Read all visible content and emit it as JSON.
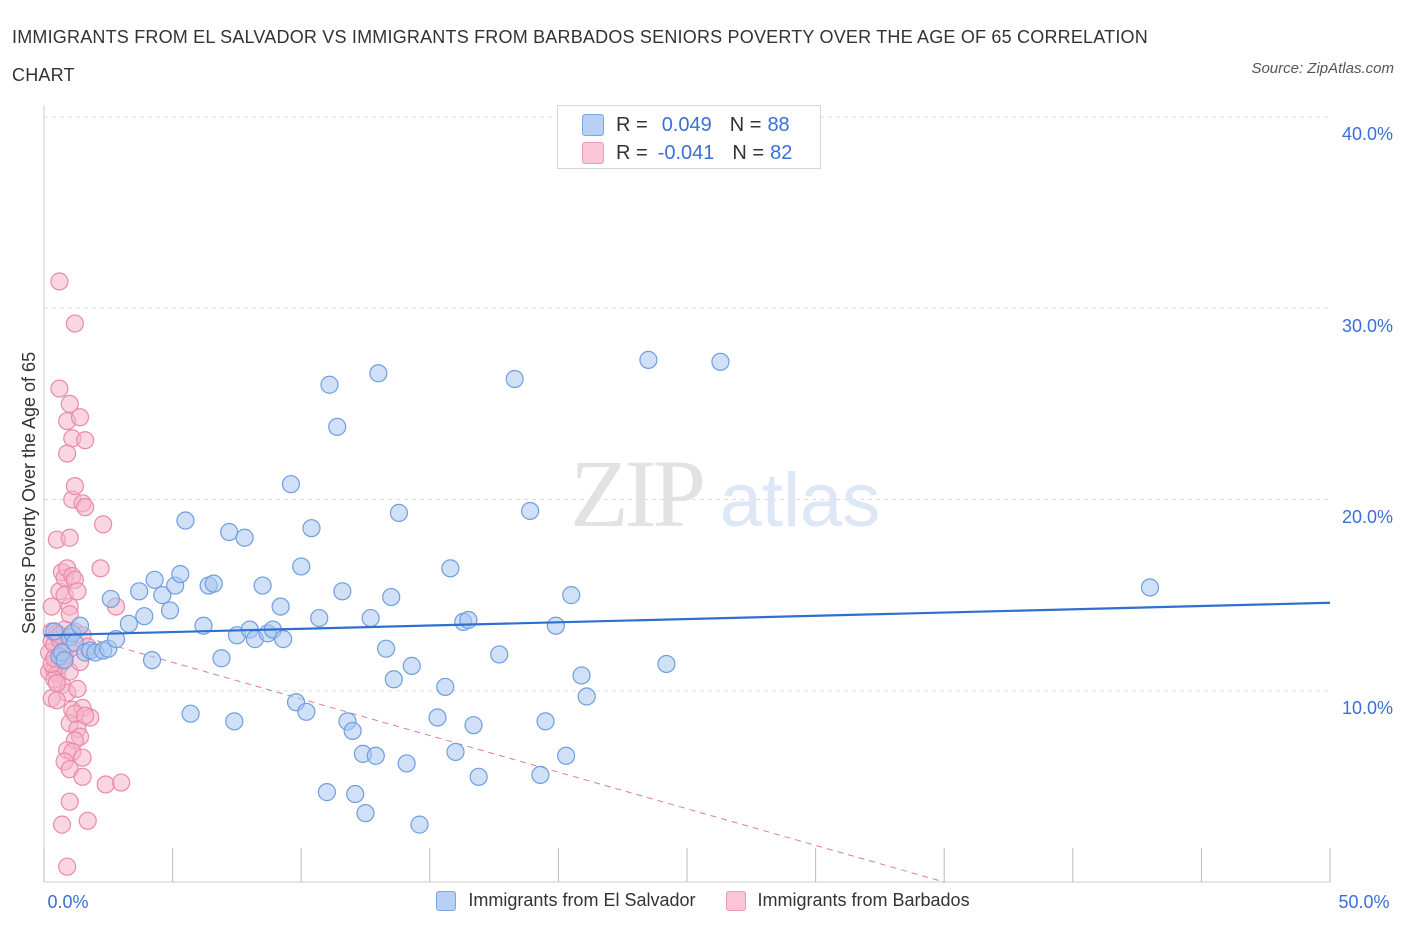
{
  "title": "IMMIGRANTS FROM EL SALVADOR VS IMMIGRANTS FROM BARBADOS SENIORS POVERTY OVER THE AGE OF 65 CORRELATION CHART",
  "source": "Source: ZipAtlas.com",
  "watermark": {
    "zip": "ZIP",
    "atlas": "atlas"
  },
  "legend": {
    "series1": {
      "r_label": "R =",
      "r_value": "0.049",
      "n_label": "N =",
      "n_value": "88"
    },
    "series2": {
      "r_label": "R =",
      "r_value": "-0.041",
      "n_label": "N =",
      "n_value": "82"
    }
  },
  "colors": {
    "blue_fill": "#a8c6f0",
    "blue_stroke": "#6f9ee0",
    "blue_line": "#2e6fd0",
    "pink_fill": "#f6b4c9",
    "pink_stroke": "#e88aab",
    "pink_line": "#e07a9c",
    "grid": "#dddddd",
    "tick_text": "#3a6fd8",
    "axis_text": "#333333"
  },
  "chart_data": {
    "type": "scatter",
    "title": "IMMIGRANTS FROM EL SALVADOR VS IMMIGRANTS FROM BARBADOS SENIORS POVERTY OVER THE AGE OF 65 CORRELATION CHART",
    "xlabel": "",
    "ylabel": "Seniors Poverty Over the Age of 65",
    "xlim": [
      0,
      50
    ],
    "ylim": [
      0,
      40
    ],
    "x_tick_labels": [
      "0.0%",
      "50.0%"
    ],
    "y_tick_labels": [
      "10.0%",
      "20.0%",
      "30.0%",
      "40.0%"
    ],
    "y_ticks": [
      10,
      20,
      30,
      40
    ],
    "series": [
      {
        "name": "Immigrants from El Salvador",
        "color": "blue",
        "r": 0.049,
        "n": 88,
        "trend": {
          "x": [
            0,
            50
          ],
          "y": [
            12.9,
            14.6
          ],
          "style": "solid"
        },
        "points": [
          [
            0.4,
            13.1
          ],
          [
            0.6,
            11.8
          ],
          [
            0.7,
            12.0
          ],
          [
            0.8,
            11.6
          ],
          [
            1.0,
            12.8
          ],
          [
            1.1,
            13.0
          ],
          [
            1.2,
            12.5
          ],
          [
            1.4,
            13.4
          ],
          [
            1.6,
            12.0
          ],
          [
            1.8,
            12.1
          ],
          [
            2.0,
            12.0
          ],
          [
            2.3,
            12.1
          ],
          [
            2.5,
            12.2
          ],
          [
            2.8,
            12.7
          ],
          [
            2.6,
            14.8
          ],
          [
            3.3,
            13.5
          ],
          [
            3.7,
            15.2
          ],
          [
            3.9,
            13.9
          ],
          [
            4.2,
            11.6
          ],
          [
            4.3,
            15.8
          ],
          [
            4.6,
            15.0
          ],
          [
            4.9,
            14.2
          ],
          [
            5.1,
            15.5
          ],
          [
            5.3,
            16.1
          ],
          [
            5.5,
            18.9
          ],
          [
            5.7,
            8.8
          ],
          [
            6.2,
            13.4
          ],
          [
            6.4,
            15.5
          ],
          [
            6.6,
            15.6
          ],
          [
            6.9,
            11.7
          ],
          [
            7.2,
            18.3
          ],
          [
            7.4,
            8.4
          ],
          [
            7.5,
            12.9
          ],
          [
            7.8,
            18.0
          ],
          [
            8.0,
            13.2
          ],
          [
            8.2,
            12.7
          ],
          [
            8.5,
            15.5
          ],
          [
            8.7,
            13.0
          ],
          [
            8.9,
            13.2
          ],
          [
            9.2,
            14.4
          ],
          [
            9.3,
            12.7
          ],
          [
            9.6,
            20.8
          ],
          [
            9.8,
            9.4
          ],
          [
            10.0,
            16.5
          ],
          [
            10.2,
            8.9
          ],
          [
            10.4,
            18.5
          ],
          [
            10.7,
            13.8
          ],
          [
            11.0,
            4.7
          ],
          [
            11.1,
            26.0
          ],
          [
            11.4,
            23.8
          ],
          [
            11.6,
            15.2
          ],
          [
            11.8,
            8.4
          ],
          [
            12.0,
            7.9
          ],
          [
            12.1,
            4.6
          ],
          [
            12.4,
            6.7
          ],
          [
            12.5,
            3.6
          ],
          [
            12.9,
            6.6
          ],
          [
            12.7,
            13.8
          ],
          [
            13.0,
            26.6
          ],
          [
            13.3,
            12.2
          ],
          [
            13.5,
            14.9
          ],
          [
            13.6,
            10.6
          ],
          [
            13.8,
            19.3
          ],
          [
            14.1,
            6.2
          ],
          [
            14.3,
            11.3
          ],
          [
            14.6,
            3.0
          ],
          [
            15.3,
            8.6
          ],
          [
            15.6,
            10.2
          ],
          [
            15.8,
            16.4
          ],
          [
            16.0,
            6.8
          ],
          [
            16.3,
            13.6
          ],
          [
            16.5,
            13.7
          ],
          [
            16.7,
            8.2
          ],
          [
            16.9,
            5.5
          ],
          [
            17.7,
            11.9
          ],
          [
            18.3,
            26.3
          ],
          [
            18.9,
            19.4
          ],
          [
            19.3,
            5.6
          ],
          [
            19.5,
            8.4
          ],
          [
            19.9,
            13.4
          ],
          [
            20.3,
            6.6
          ],
          [
            20.5,
            15.0
          ],
          [
            20.9,
            10.8
          ],
          [
            21.1,
            9.7
          ],
          [
            23.5,
            27.3
          ],
          [
            24.2,
            11.4
          ],
          [
            26.3,
            27.2
          ],
          [
            43.0,
            15.4
          ]
        ]
      },
      {
        "name": "Immigrants from Barbados",
        "color": "pink",
        "r": -0.041,
        "n": 82,
        "trend": {
          "x": [
            0,
            35
          ],
          "y": [
            13.4,
            0.0
          ],
          "style": "dashed"
        },
        "points": [
          [
            0.2,
            12.0
          ],
          [
            0.2,
            11.0
          ],
          [
            0.3,
            13.1
          ],
          [
            0.3,
            12.6
          ],
          [
            0.3,
            9.6
          ],
          [
            0.3,
            14.4
          ],
          [
            0.4,
            11.7
          ],
          [
            0.4,
            11.1
          ],
          [
            0.4,
            12.4
          ],
          [
            0.5,
            17.9
          ],
          [
            0.5,
            13.0
          ],
          [
            0.5,
            10.9
          ],
          [
            0.6,
            12.7
          ],
          [
            0.6,
            11.3
          ],
          [
            0.6,
            15.2
          ],
          [
            0.7,
            16.2
          ],
          [
            0.7,
            12.0
          ],
          [
            0.7,
            10.3
          ],
          [
            0.8,
            15.9
          ],
          [
            0.8,
            13.2
          ],
          [
            0.8,
            11.8
          ],
          [
            0.9,
            12.3
          ],
          [
            0.9,
            9.9
          ],
          [
            1.0,
            14.4
          ],
          [
            1.0,
            12.2
          ],
          [
            1.0,
            11.0
          ],
          [
            0.4,
            10.6
          ],
          [
            0.5,
            9.5
          ],
          [
            0.6,
            12.9
          ],
          [
            0.7,
            11.6
          ],
          [
            0.8,
            15.0
          ],
          [
            0.9,
            16.4
          ],
          [
            0.6,
            31.4
          ],
          [
            1.2,
            29.2
          ],
          [
            0.6,
            25.8
          ],
          [
            0.9,
            24.1
          ],
          [
            1.0,
            25.0
          ],
          [
            1.4,
            24.3
          ],
          [
            1.1,
            23.2
          ],
          [
            1.6,
            23.1
          ],
          [
            0.9,
            22.4
          ],
          [
            1.1,
            20.0
          ],
          [
            1.2,
            20.7
          ],
          [
            1.5,
            19.8
          ],
          [
            1.6,
            19.6
          ],
          [
            2.3,
            18.7
          ],
          [
            1.0,
            18.0
          ],
          [
            2.2,
            16.4
          ],
          [
            1.1,
            16.0
          ],
          [
            1.2,
            15.8
          ],
          [
            1.3,
            15.2
          ],
          [
            1.0,
            14.0
          ],
          [
            1.2,
            13.1
          ],
          [
            1.5,
            12.9
          ],
          [
            1.7,
            12.3
          ],
          [
            2.8,
            14.4
          ],
          [
            1.4,
            11.5
          ],
          [
            1.3,
            10.1
          ],
          [
            1.1,
            9.0
          ],
          [
            1.5,
            9.1
          ],
          [
            1.8,
            8.6
          ],
          [
            1.0,
            8.3
          ],
          [
            1.3,
            8.0
          ],
          [
            1.4,
            7.6
          ],
          [
            1.2,
            7.4
          ],
          [
            0.9,
            6.9
          ],
          [
            1.1,
            6.8
          ],
          [
            1.5,
            6.5
          ],
          [
            0.8,
            6.3
          ],
          [
            1.0,
            5.9
          ],
          [
            1.5,
            5.5
          ],
          [
            2.4,
            5.1
          ],
          [
            3.0,
            5.2
          ],
          [
            1.0,
            4.2
          ],
          [
            1.7,
            3.2
          ],
          [
            0.7,
            3.0
          ],
          [
            0.9,
            0.8
          ],
          [
            1.2,
            8.8
          ],
          [
            1.6,
            8.7
          ],
          [
            0.5,
            10.4
          ],
          [
            0.3,
            11.4
          ],
          [
            0.4,
            11.7
          ]
        ]
      }
    ]
  },
  "bottom_legend": [
    "Immigrants from El Salvador",
    "Immigrants from Barbados"
  ]
}
